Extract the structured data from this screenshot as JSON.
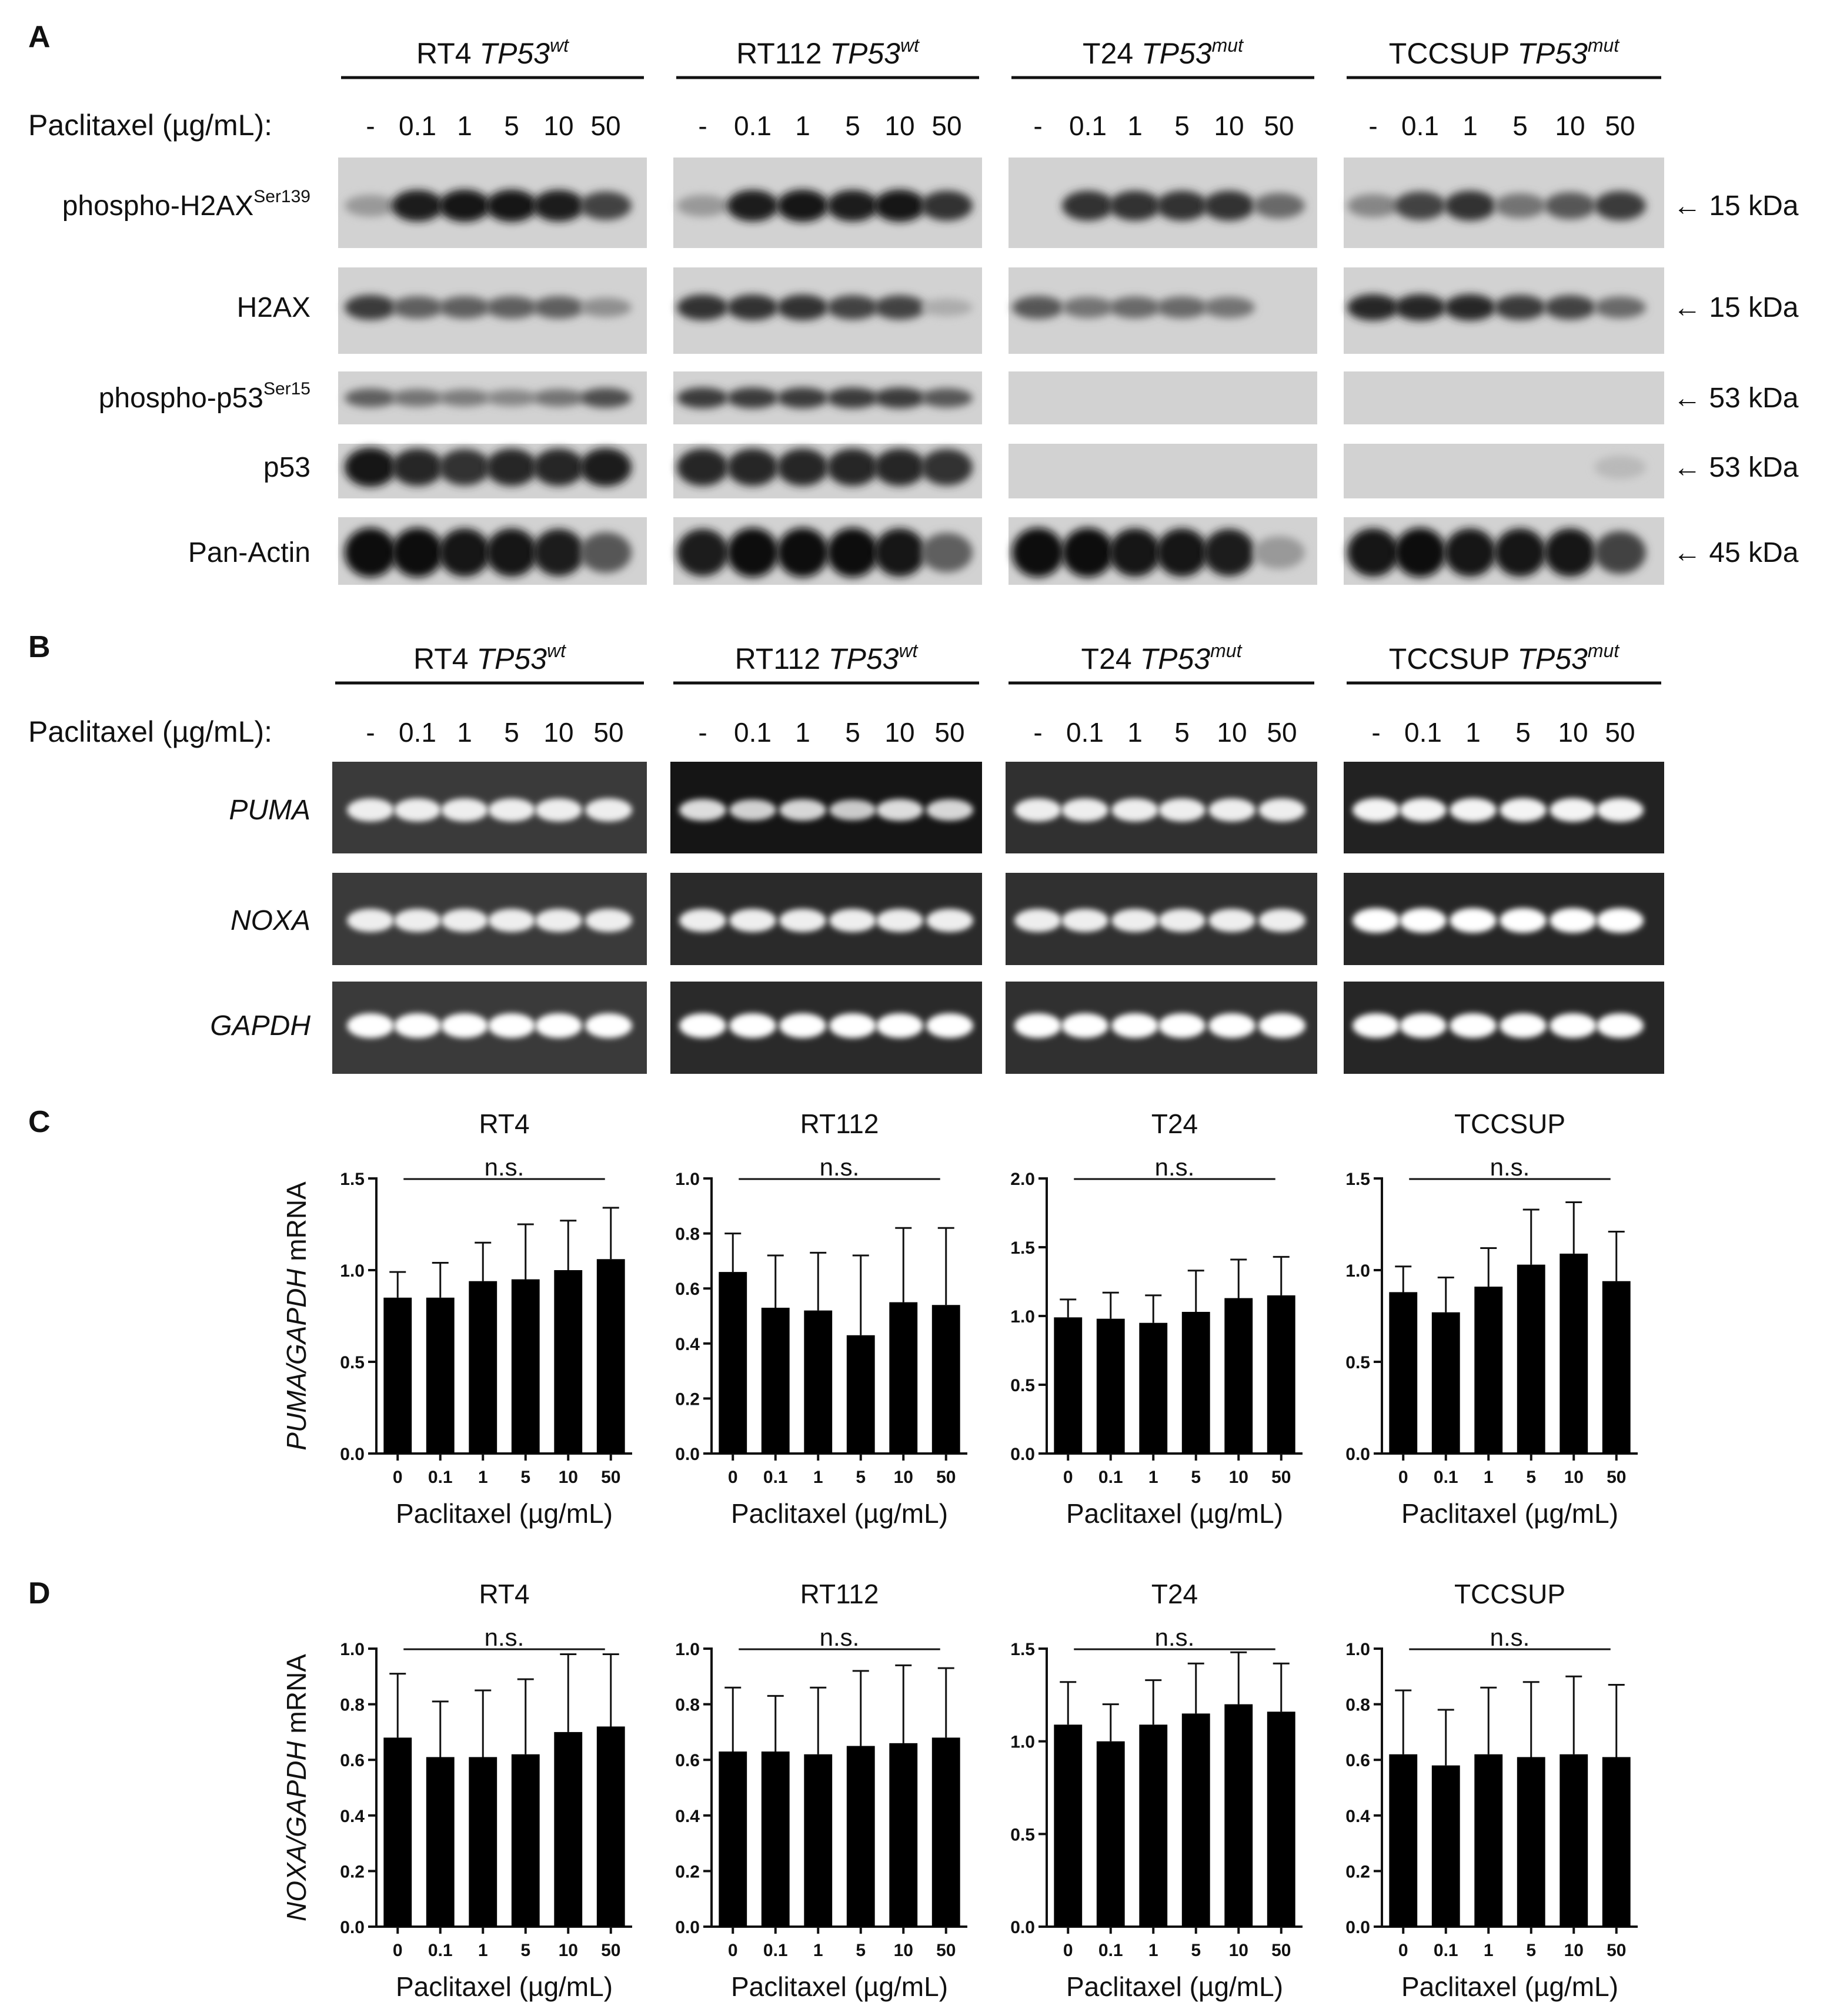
{
  "panels": {
    "A": "A",
    "B": "B",
    "C": "C",
    "D": "D"
  },
  "treatment_label": "Paclitaxel (µg/mL):",
  "concentrations": [
    "-",
    "0.1",
    "1",
    "5",
    "10",
    "50"
  ],
  "cell_lines": [
    {
      "name": "RT4",
      "genotype": "TP53",
      "status": "wt"
    },
    {
      "name": "RT112",
      "genotype": "TP53",
      "status": "wt"
    },
    {
      "name": "T24",
      "genotype": "TP53",
      "status": "mut"
    },
    {
      "name": "TCCSUP",
      "genotype": "TP53",
      "status": "mut"
    }
  ],
  "western": {
    "rows": [
      {
        "label": "phospho-H2AX",
        "sup": "Ser139",
        "kda": "15 kDa"
      },
      {
        "label": "H2AX",
        "sup": "",
        "kda": "15 kDa"
      },
      {
        "label": "phospho-p53",
        "sup": "Ser15",
        "kda": "53 kDa"
      },
      {
        "label": "p53",
        "sup": "",
        "kda": "53 kDa"
      },
      {
        "label": "Pan-Actin",
        "sup": "",
        "kda": "45 kDa"
      }
    ],
    "arrow": "←",
    "band_intensity": [
      [
        [
          0.25,
          0.9,
          0.95,
          0.95,
          0.9,
          0.7
        ],
        [
          0.25,
          0.9,
          0.95,
          0.9,
          0.95,
          0.8
        ],
        [
          0.0,
          0.8,
          0.8,
          0.8,
          0.8,
          0.5
        ],
        [
          0.35,
          0.7,
          0.8,
          0.45,
          0.6,
          0.75
        ]
      ],
      [
        [
          0.75,
          0.55,
          0.55,
          0.55,
          0.55,
          0.3
        ],
        [
          0.8,
          0.8,
          0.8,
          0.7,
          0.7,
          0.15
        ],
        [
          0.6,
          0.45,
          0.5,
          0.5,
          0.45,
          0.0
        ],
        [
          0.85,
          0.85,
          0.85,
          0.75,
          0.7,
          0.5
        ]
      ],
      [
        [
          0.55,
          0.45,
          0.4,
          0.35,
          0.45,
          0.65
        ],
        [
          0.75,
          0.75,
          0.75,
          0.75,
          0.75,
          0.6
        ],
        [
          0,
          0,
          0,
          0,
          0,
          0
        ],
        [
          0,
          0,
          0,
          0,
          0,
          0
        ]
      ],
      [
        [
          0.95,
          0.85,
          0.8,
          0.85,
          0.85,
          0.9
        ],
        [
          0.85,
          0.85,
          0.85,
          0.85,
          0.85,
          0.8
        ],
        [
          0,
          0,
          0,
          0,
          0,
          0
        ],
        [
          0,
          0,
          0,
          0,
          0,
          0.08
        ]
      ],
      [
        [
          1,
          1,
          0.95,
          0.95,
          0.9,
          0.6
        ],
        [
          0.9,
          1,
          1,
          1,
          0.95,
          0.55
        ],
        [
          1,
          1,
          0.95,
          0.95,
          0.9,
          0.25
        ],
        [
          0.95,
          1,
          0.95,
          0.95,
          0.95,
          0.7
        ]
      ]
    ]
  },
  "pcr": {
    "rows": [
      {
        "label": "PUMA"
      },
      {
        "label": "NOXA"
      },
      {
        "label": "GAPDH"
      }
    ],
    "band_intensity": [
      [
        [
          0.85,
          0.85,
          0.85,
          0.85,
          0.85,
          0.85
        ],
        [
          0.7,
          0.6,
          0.65,
          0.55,
          0.7,
          0.65
        ],
        [
          0.85,
          0.85,
          0.85,
          0.85,
          0.85,
          0.85
        ],
        [
          0.9,
          0.9,
          0.9,
          0.9,
          0.9,
          0.9
        ]
      ],
      [
        [
          0.85,
          0.85,
          0.85,
          0.85,
          0.85,
          0.85
        ],
        [
          0.85,
          0.85,
          0.85,
          0.85,
          0.85,
          0.85
        ],
        [
          0.85,
          0.85,
          0.85,
          0.85,
          0.85,
          0.85
        ],
        [
          1,
          1,
          1,
          1,
          1,
          1
        ]
      ],
      [
        [
          1,
          1,
          1,
          1,
          1,
          1
        ],
        [
          1,
          1,
          1,
          1,
          1,
          1
        ],
        [
          1,
          1,
          1,
          1,
          1,
          1
        ],
        [
          1,
          1,
          1,
          1,
          1,
          1
        ]
      ]
    ]
  },
  "chart_data": [
    {
      "type": "bar",
      "panel": "C",
      "title": "RT4",
      "categories": [
        "0",
        "0.1",
        "1",
        "5",
        "10",
        "50"
      ],
      "values": [
        0.85,
        0.85,
        0.94,
        0.95,
        1.0,
        1.06
      ],
      "errors": [
        0.14,
        0.19,
        0.21,
        0.3,
        0.27,
        0.28
      ],
      "ylim": [
        0,
        1.5
      ],
      "yticks": [
        "0.0",
        "0.5",
        "1.0",
        "1.5"
      ],
      "ylabel_italic": "PUMA/GAPDH",
      "ylabel_rest": " mRNA",
      "xlabel": "Paclitaxel (µg/mL)",
      "annotation": "n.s."
    },
    {
      "type": "bar",
      "panel": "C",
      "title": "RT112",
      "categories": [
        "0",
        "0.1",
        "1",
        "5",
        "10",
        "50"
      ],
      "values": [
        0.66,
        0.53,
        0.52,
        0.43,
        0.55,
        0.54
      ],
      "errors": [
        0.14,
        0.19,
        0.21,
        0.29,
        0.27,
        0.28
      ],
      "ylim": [
        0,
        1.0
      ],
      "yticks": [
        "0.0",
        "0.2",
        "0.4",
        "0.6",
        "0.8",
        "1.0"
      ],
      "xlabel": "Paclitaxel (µg/mL)",
      "annotation": "n.s."
    },
    {
      "type": "bar",
      "panel": "C",
      "title": "T24",
      "categories": [
        "0",
        "0.1",
        "1",
        "5",
        "10",
        "50"
      ],
      "values": [
        0.99,
        0.98,
        0.95,
        1.03,
        1.13,
        1.15
      ],
      "errors": [
        0.13,
        0.19,
        0.2,
        0.3,
        0.28,
        0.28
      ],
      "ylim": [
        0,
        2.0
      ],
      "yticks": [
        "0.0",
        "0.5",
        "1.0",
        "1.5",
        "2.0"
      ],
      "xlabel": "Paclitaxel (µg/mL)",
      "annotation": "n.s."
    },
    {
      "type": "bar",
      "panel": "C",
      "title": "TCCSUP",
      "categories": [
        "0",
        "0.1",
        "1",
        "5",
        "10",
        "50"
      ],
      "values": [
        0.88,
        0.77,
        0.91,
        1.03,
        1.09,
        0.94
      ],
      "errors": [
        0.14,
        0.19,
        0.21,
        0.3,
        0.28,
        0.27
      ],
      "ylim": [
        0,
        1.5
      ],
      "yticks": [
        "0.0",
        "0.5",
        "1.0",
        "1.5"
      ],
      "xlabel": "Paclitaxel (µg/mL)",
      "annotation": "n.s."
    },
    {
      "type": "bar",
      "panel": "D",
      "title": "RT4",
      "categories": [
        "0",
        "0.1",
        "1",
        "5",
        "10",
        "50"
      ],
      "values": [
        0.68,
        0.61,
        0.61,
        0.62,
        0.7,
        0.72
      ],
      "errors": [
        0.23,
        0.2,
        0.24,
        0.27,
        0.28,
        0.26
      ],
      "ylim": [
        0,
        1.0
      ],
      "yticks": [
        "0.0",
        "0.2",
        "0.4",
        "0.6",
        "0.8",
        "1.0"
      ],
      "ylabel_italic": "NOXA/GAPDH",
      "ylabel_rest": " mRNA",
      "xlabel": "Paclitaxel (µg/mL)",
      "annotation": "n.s."
    },
    {
      "type": "bar",
      "panel": "D",
      "title": "RT112",
      "categories": [
        "0",
        "0.1",
        "1",
        "5",
        "10",
        "50"
      ],
      "values": [
        0.63,
        0.63,
        0.62,
        0.65,
        0.66,
        0.68
      ],
      "errors": [
        0.23,
        0.2,
        0.24,
        0.27,
        0.28,
        0.25
      ],
      "ylim": [
        0,
        1.0
      ],
      "yticks": [
        "0.0",
        "0.2",
        "0.4",
        "0.6",
        "0.8",
        "1.0"
      ],
      "xlabel": "Paclitaxel (µg/mL)",
      "annotation": "n.s."
    },
    {
      "type": "bar",
      "panel": "D",
      "title": "T24",
      "categories": [
        "0",
        "0.1",
        "1",
        "5",
        "10",
        "50"
      ],
      "values": [
        1.09,
        1.0,
        1.09,
        1.15,
        1.2,
        1.16
      ],
      "errors": [
        0.23,
        0.2,
        0.24,
        0.27,
        0.28,
        0.26
      ],
      "ylim": [
        0,
        1.5
      ],
      "yticks": [
        "0.0",
        "0.5",
        "1.0",
        "1.5"
      ],
      "xlabel": "Paclitaxel (µg/mL)",
      "annotation": "n.s."
    },
    {
      "type": "bar",
      "panel": "D",
      "title": "TCCSUP",
      "categories": [
        "0",
        "0.1",
        "1",
        "5",
        "10",
        "50"
      ],
      "values": [
        0.62,
        0.58,
        0.62,
        0.61,
        0.62,
        0.61
      ],
      "errors": [
        0.23,
        0.2,
        0.24,
        0.27,
        0.28,
        0.26
      ],
      "ylim": [
        0,
        1.0
      ],
      "yticks": [
        "0.0",
        "0.2",
        "0.4",
        "0.6",
        "0.8",
        "1.0"
      ],
      "xlabel": "Paclitaxel (µg/mL)",
      "annotation": "n.s."
    }
  ]
}
